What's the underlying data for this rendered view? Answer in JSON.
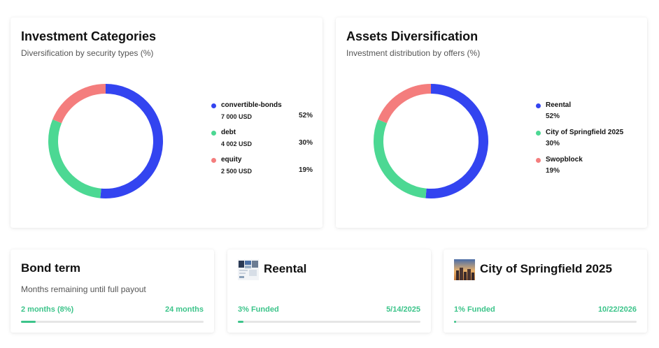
{
  "investment_categories": {
    "title": "Investment Categories",
    "subtitle": "Diversification by security types (%)",
    "items": [
      {
        "name": "convertible-bonds",
        "amount": "7 000 USD",
        "percent": "52%",
        "value": 52,
        "color": "#3344f0"
      },
      {
        "name": "debt",
        "amount": "4 002 USD",
        "percent": "30%",
        "value": 30,
        "color": "#4cd893"
      },
      {
        "name": "equity",
        "amount": "2 500 USD",
        "percent": "19%",
        "value": 19,
        "color": "#f47d7d"
      }
    ]
  },
  "assets_diversification": {
    "title": "Assets Diversification",
    "subtitle": "Investment distribution by offers (%)",
    "items": [
      {
        "name": "Reental",
        "percent": "52%",
        "value": 52,
        "color": "#3344f0"
      },
      {
        "name": "City of Springfield 2025",
        "percent": "30%",
        "value": 30,
        "color": "#4cd893"
      },
      {
        "name": "Swopblock",
        "percent": "19%",
        "value": 19,
        "color": "#f47d7d"
      }
    ]
  },
  "bond_term": {
    "title": "Bond term",
    "subtitle": "Months remaining until full payout",
    "progress_label": "2 months (8%)",
    "end_label": "24 months",
    "progress": 8
  },
  "reental": {
    "title": "Reental",
    "thumb_icon": "reental-thumbnail-icon",
    "funded_label": "3% Funded",
    "date": "5/14/2025",
    "progress": 3
  },
  "city": {
    "title": "City of Springfield 2025",
    "thumb_icon": "city-thumbnail-icon",
    "funded_label": "1% Funded",
    "date": "10/22/2026",
    "progress": 1
  },
  "colors": {
    "blue": "#3344f0",
    "green": "#4cd893",
    "red": "#f47d7d",
    "progress_green": "#3cc48a",
    "track": "#e6e6e6"
  }
}
